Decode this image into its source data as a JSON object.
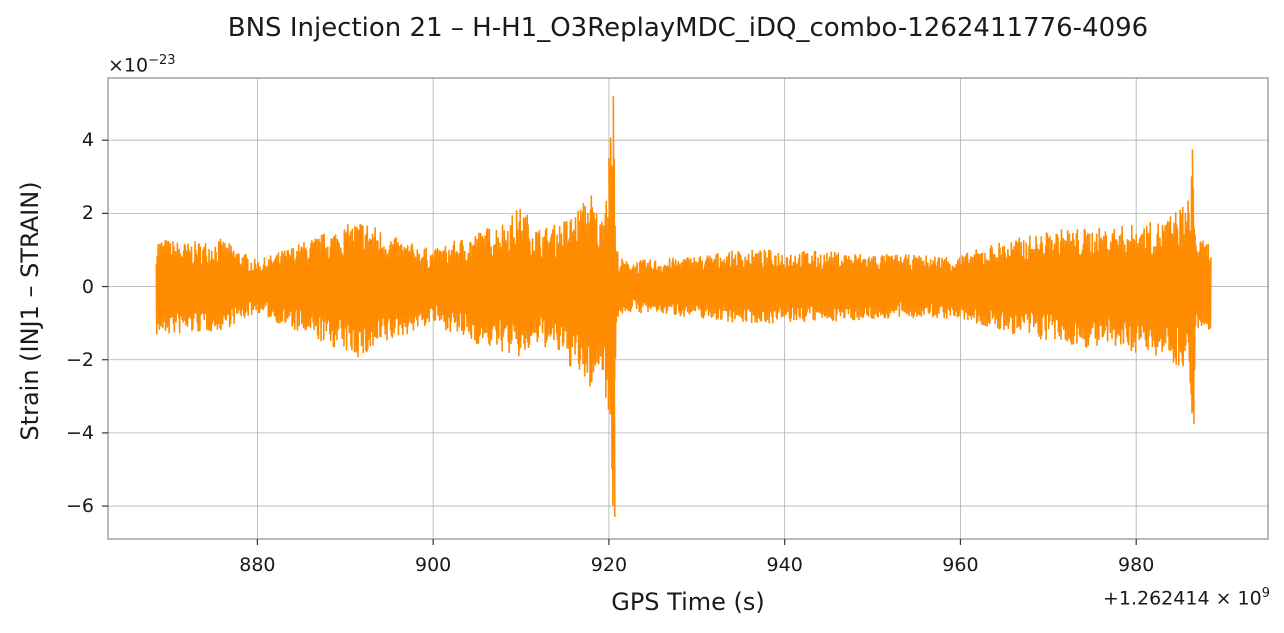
{
  "chart_data": {
    "type": "line",
    "title": "BNS Injection 21 – H-H1_O3ReplayMDC_iDQ_combo-1262411776-4096",
    "xlabel": "GPS Time (s)",
    "ylabel": "Strain (INJ1 – STRAIN)",
    "x_offset_label": {
      "base": "+1.262414 × 10",
      "exp": "9"
    },
    "y_scale_label": {
      "base": "×10",
      "exp": "−23"
    },
    "xlim": [
      863,
      995
    ],
    "ylim": [
      -6.9,
      5.7
    ],
    "xticks": [
      880,
      900,
      920,
      940,
      960,
      980
    ],
    "xtick_labels": [
      "880",
      "900",
      "920",
      "940",
      "960",
      "980"
    ],
    "yticks": [
      4,
      2,
      0,
      -2,
      -4,
      -6
    ],
    "ytick_labels": [
      "4",
      "2",
      "0",
      "−2",
      "−4",
      "−6"
    ],
    "grid": true,
    "color": "#ff8c00",
    "series": [
      {
        "x_range": [
          868.5,
          988.5
        ],
        "envelope_x": [
          868.5,
          872,
          876,
          880,
          884,
          888,
          892,
          896,
          900,
          904,
          908,
          910,
          912,
          914,
          916,
          918,
          919,
          920,
          920.5,
          920.8,
          921.2,
          922,
          926,
          930,
          935,
          940,
          945,
          950,
          955,
          960,
          964,
          968,
          972,
          976,
          980,
          983,
          985,
          986,
          986.4,
          986.8,
          987.5,
          988.5
        ],
        "envelope_upper": [
          1.35,
          1.2,
          1.3,
          0.7,
          1.1,
          1.5,
          1.85,
          1.3,
          1.0,
          1.4,
          1.8,
          2.2,
          1.6,
          1.7,
          2.0,
          2.6,
          1.8,
          3.5,
          5.2,
          1.2,
          0.8,
          0.7,
          0.75,
          0.85,
          1.0,
          1.0,
          0.95,
          0.9,
          0.85,
          0.85,
          1.2,
          1.4,
          1.6,
          1.6,
          1.7,
          1.8,
          2.2,
          2.4,
          3.75,
          1.4,
          1.25,
          1.2
        ],
        "envelope_lower": [
          -1.35,
          -1.3,
          -1.2,
          -0.7,
          -1.2,
          -1.6,
          -2.0,
          -1.4,
          -1.0,
          -1.5,
          -1.8,
          -2.0,
          -1.6,
          -1.8,
          -2.3,
          -2.85,
          -2.2,
          -3.5,
          -6.3,
          -1.2,
          -0.8,
          -0.7,
          -0.75,
          -0.85,
          -1.0,
          -1.0,
          -0.95,
          -0.9,
          -0.85,
          -0.9,
          -1.2,
          -1.4,
          -1.6,
          -1.7,
          -1.8,
          -1.9,
          -2.2,
          -2.3,
          -3.75,
          -1.4,
          -1.25,
          -1.2
        ]
      }
    ]
  }
}
